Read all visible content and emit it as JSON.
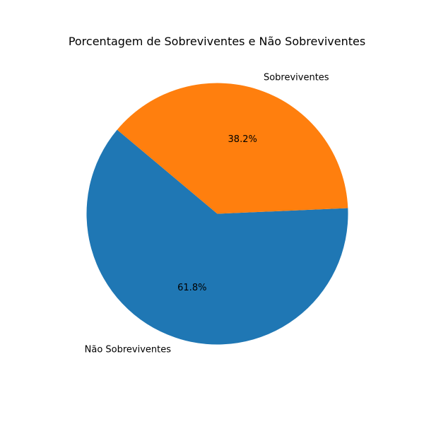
{
  "chart_data": {
    "type": "pie",
    "title": "Porcentagem de Sobreviventes e Não Sobreviventes",
    "labels": [
      "Não Sobreviventes",
      "Sobreviventes"
    ],
    "values": [
      61.8,
      38.2
    ],
    "percent_labels": [
      "61.8%",
      "38.2%"
    ],
    "colors": [
      "#1f77b4",
      "#ff7f0e"
    ],
    "start_angle_deg": 140,
    "direction": "counterclockwise"
  }
}
